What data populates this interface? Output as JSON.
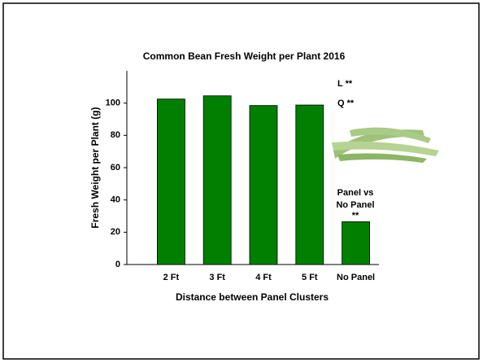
{
  "chart_data": {
    "type": "bar",
    "title": "Common Bean Fresh Weight per Plant 2016",
    "x_label": "Distance between Panel Clusters",
    "y_label": "Fresh Weight per Plant (g)",
    "categories": [
      "2 Ft",
      "3 Ft",
      "4 Ft",
      "5 Ft",
      "No Panel"
    ],
    "values": [
      102.5,
      104.5,
      98.5,
      98.8,
      26.5
    ],
    "color": "#007f00",
    "ylim": [
      0,
      120
    ],
    "yticks": [
      0,
      20,
      40,
      60,
      80,
      100
    ],
    "grid": false,
    "annotations": [
      "L **",
      "Q **",
      "Panel vs",
      "No Panel",
      "**"
    ]
  }
}
